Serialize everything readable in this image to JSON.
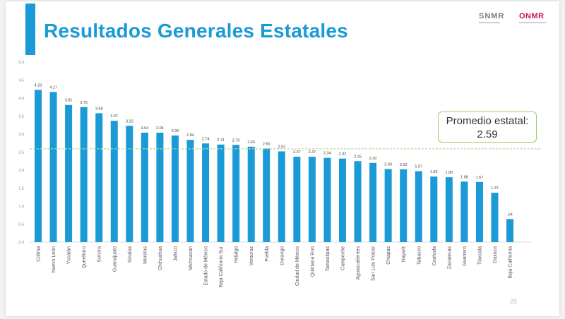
{
  "slide": {
    "title": "Resultados Generales Estatales",
    "logos": [
      "SNMR",
      "ONMR"
    ],
    "page_number": "25",
    "accent_color": "#1a9ad6"
  },
  "chart_data": {
    "type": "bar",
    "categories": [
      "Colima",
      "Nuevo León",
      "Yucatán",
      "Querétaro",
      "Sonora",
      "Guanajuato",
      "Sinaloa",
      "Morelos",
      "Chihuahua",
      "Jalisco",
      "Michoacán",
      "Estado de México",
      "Baja California Sur",
      "Hidalgo",
      "Veracruz",
      "Puebla",
      "Durango",
      "Ciudad de México",
      "Quintana Roo",
      "Tamaulipas",
      "Campeche",
      "Aguascalientes",
      "San Luis Potosí",
      "Chiapas",
      "Nayarit",
      "Tabasco",
      "Coahuila",
      "Zacatecas",
      "Guerrero",
      "Tlaxcala",
      "Oaxaca",
      "Baja California"
    ],
    "values": [
      4.23,
      4.17,
      3.81,
      3.75,
      3.58,
      3.37,
      3.23,
      3.04,
      3.04,
      2.96,
      2.84,
      2.74,
      2.71,
      2.7,
      2.65,
      2.6,
      2.52,
      2.37,
      2.37,
      2.34,
      2.32,
      2.25,
      2.2,
      2.03,
      2.02,
      1.97,
      1.82,
      1.8,
      1.68,
      1.67,
      1.37,
      0.64
    ],
    "data_labels": [
      "4.23",
      "4.17",
      "3.81",
      "3.75",
      "3.58",
      "3.37",
      "3.23",
      "3.04",
      "3.04",
      "2.96",
      "2.84",
      "2.74",
      "2.71",
      "2.70",
      "2.65",
      "2.60",
      "2.52",
      "2.37",
      "2.37",
      "2.34",
      "2.32",
      "2.25",
      "2.20",
      "2.03",
      "2.02",
      "1.97",
      "1.82",
      "1.80",
      "1.68",
      "1.67",
      "1.37",
      ".64"
    ],
    "yticks": [
      "0.0",
      "0.5",
      "1.0",
      "1.5",
      "2.0",
      "2.5",
      "3.0",
      "3.5",
      "4.0",
      "4.5",
      "5.0"
    ],
    "ylim": [
      0,
      5
    ],
    "bar_color": "#1a9ad6",
    "reference_line": {
      "value": 2.59,
      "label": "Promedio estatal:",
      "value_label": "2.59",
      "color": "#b5d99c"
    },
    "grid": false,
    "legend": "none"
  }
}
